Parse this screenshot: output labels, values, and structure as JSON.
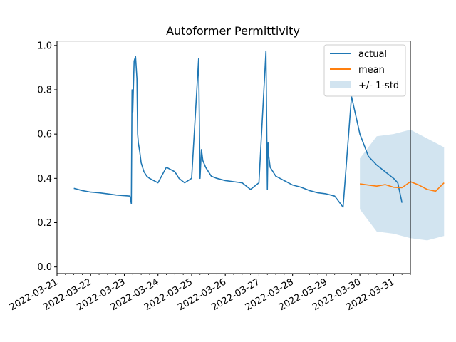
{
  "chart_data": {
    "type": "line",
    "title": "Autoformer Permittivity",
    "xlabel": "",
    "ylabel": "",
    "ylim": [
      -0.03,
      1.02
    ],
    "xlim": [
      "2022-03-21T00:00",
      "2022-03-31T12:00"
    ],
    "y_ticks": [
      0.0,
      0.2,
      0.4,
      0.6,
      0.8,
      1.0
    ],
    "y_tick_labels": [
      "0.0",
      "0.2",
      "0.4",
      "0.6",
      "0.8",
      "1.0"
    ],
    "x_ticks": [
      "2022-03-21",
      "2022-03-22",
      "2022-03-23",
      "2022-03-24",
      "2022-03-25",
      "2022-03-26",
      "2022-03-27",
      "2022-03-28",
      "2022-03-29",
      "2022-03-30",
      "2022-03-31"
    ],
    "legend": {
      "position": "upper right",
      "entries": [
        "actual",
        "mean",
        "+/- 1-std"
      ]
    },
    "grid": false,
    "colors": {
      "actual": "#1f77b4",
      "mean": "#ff7f0e",
      "band": "#1f77b4"
    },
    "series": [
      {
        "name": "actual",
        "x": [
          "2022-03-21T12:00",
          "2022-03-21T18:00",
          "2022-03-22T00:00",
          "2022-03-22T06:00",
          "2022-03-22T12:00",
          "2022-03-22T18:00",
          "2022-03-23T04:00",
          "2022-03-23T05:00",
          "2022-03-23T05:30",
          "2022-03-23T06:00",
          "2022-03-23T07:00",
          "2022-03-23T08:00",
          "2022-03-23T09:00",
          "2022-03-23T09:30",
          "2022-03-23T10:00",
          "2022-03-23T11:00",
          "2022-03-23T12:00",
          "2022-03-23T14:00",
          "2022-03-23T16:00",
          "2022-03-23T18:00",
          "2022-03-24T00:00",
          "2022-03-24T06:00",
          "2022-03-24T12:00",
          "2022-03-24T13:00",
          "2022-03-24T15:00",
          "2022-03-24T17:00",
          "2022-03-24T19:00",
          "2022-03-25T00:00",
          "2022-03-25T05:00",
          "2022-03-25T06:00",
          "2022-03-25T07:00",
          "2022-03-25T08:00",
          "2022-03-25T10:00",
          "2022-03-25T14:00",
          "2022-03-25T18:00",
          "2022-03-26T00:00",
          "2022-03-26T06:00",
          "2022-03-26T12:00",
          "2022-03-26T18:00",
          "2022-03-27T00:00",
          "2022-03-27T05:00",
          "2022-03-27T06:00",
          "2022-03-27T06:30",
          "2022-03-27T07:00",
          "2022-03-27T08:00",
          "2022-03-27T12:00",
          "2022-03-27T18:00",
          "2022-03-28T00:00",
          "2022-03-28T06:00",
          "2022-03-28T12:00",
          "2022-03-28T18:00",
          "2022-03-29T00:00",
          "2022-03-29T06:00",
          "2022-03-29T12:00",
          "2022-03-29T18:00",
          "2022-03-30T00:00",
          "2022-03-30T06:00",
          "2022-03-30T12:00",
          "2022-03-30T18:00",
          "2022-03-31T00:00",
          "2022-03-31T03:00",
          "2022-03-31T06:00"
        ],
        "y": [
          0.355,
          0.345,
          0.338,
          0.335,
          0.33,
          0.325,
          0.32,
          0.285,
          0.8,
          0.7,
          0.93,
          0.95,
          0.85,
          0.6,
          0.56,
          0.52,
          0.47,
          0.43,
          0.41,
          0.4,
          0.38,
          0.45,
          0.43,
          0.42,
          0.4,
          0.39,
          0.38,
          0.4,
          0.94,
          0.4,
          0.53,
          0.48,
          0.45,
          0.41,
          0.4,
          0.39,
          0.385,
          0.38,
          0.35,
          0.38,
          0.975,
          0.35,
          0.56,
          0.5,
          0.45,
          0.41,
          0.39,
          0.37,
          0.36,
          0.345,
          0.335,
          0.33,
          0.32,
          0.27,
          0.77,
          0.6,
          0.5,
          0.46,
          0.43,
          0.4,
          0.38,
          0.29
        ]
      },
      {
        "name": "mean",
        "x": [
          "2022-03-30T00:00",
          "2022-03-30T06:00",
          "2022-03-30T12:00",
          "2022-03-30T18:00",
          "2022-03-31T00:00",
          "2022-03-31T06:00",
          "2022-03-31T12:00",
          "2022-03-31T18:00",
          "2022-04-01T00:00",
          "2022-04-01T06:00",
          "2022-04-01T12:00"
        ],
        "y": [
          0.375,
          0.37,
          0.365,
          0.372,
          0.36,
          0.358,
          0.385,
          0.37,
          0.35,
          0.342,
          0.38
        ]
      }
    ],
    "band": {
      "name": "+/- 1-std",
      "x": [
        "2022-03-30T00:00",
        "2022-03-30T12:00",
        "2022-03-31T00:00",
        "2022-03-31T12:00",
        "2022-04-01T00:00",
        "2022-04-01T12:00"
      ],
      "lower": [
        0.26,
        0.16,
        0.15,
        0.13,
        0.12,
        0.14
      ],
      "upper": [
        0.49,
        0.59,
        0.6,
        0.62,
        0.58,
        0.54
      ]
    }
  }
}
